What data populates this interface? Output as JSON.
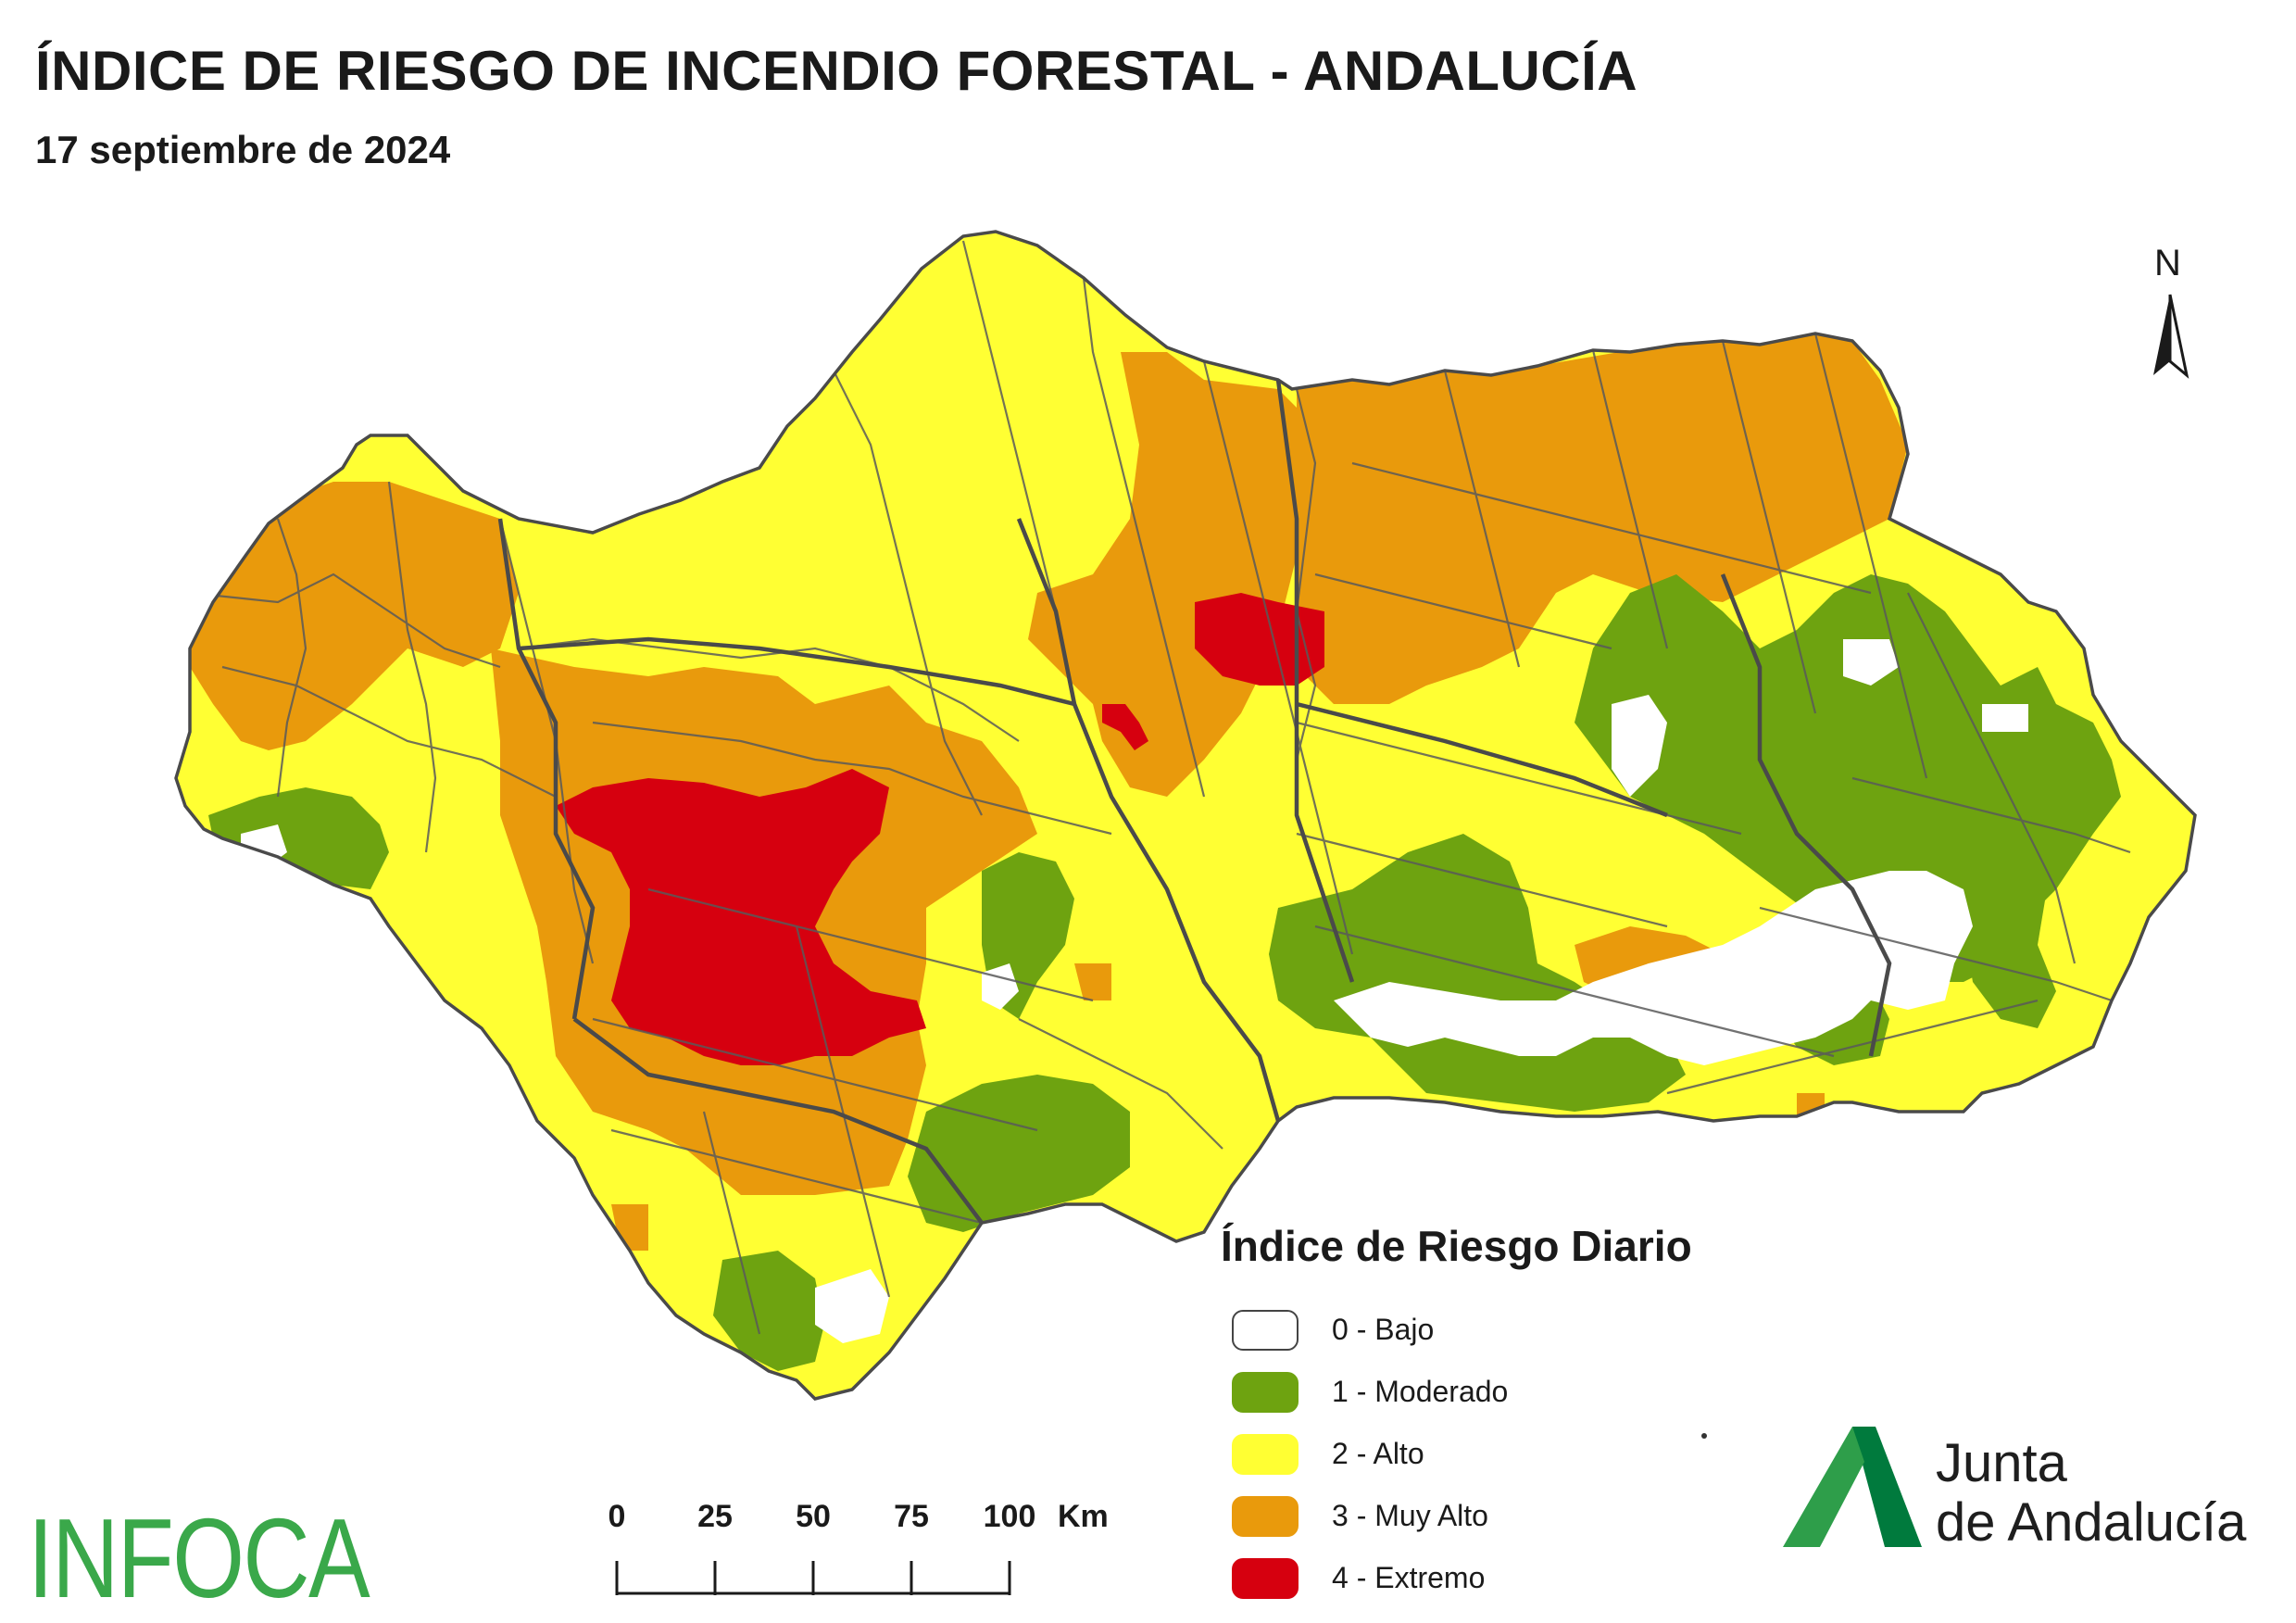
{
  "title": "ÍNDICE DE RIESGO DE INCENDIO FORESTAL - ANDALUCÍA",
  "subtitle": "17 septiembre de 2024",
  "north_label": "N",
  "legend": {
    "title": "Índice de Riesgo Diario",
    "items": [
      {
        "label": "0 - Bajo",
        "color": "#ffffff"
      },
      {
        "label": "1 - Moderado",
        "color": "#6ea310"
      },
      {
        "label": "2 - Alto",
        "color": "#ffff33"
      },
      {
        "label": "3 - Muy Alto",
        "color": "#e99a0c"
      },
      {
        "label": "4 - Extremo",
        "color": "#d6000f"
      }
    ]
  },
  "scale_bar": {
    "ticks": [
      "0",
      "25",
      "50",
      "75",
      "100"
    ],
    "unit": "Km"
  },
  "logos": {
    "infoca": "INFOCA",
    "junta_line1": "Junta",
    "junta_line2": "de Andalucía"
  }
}
